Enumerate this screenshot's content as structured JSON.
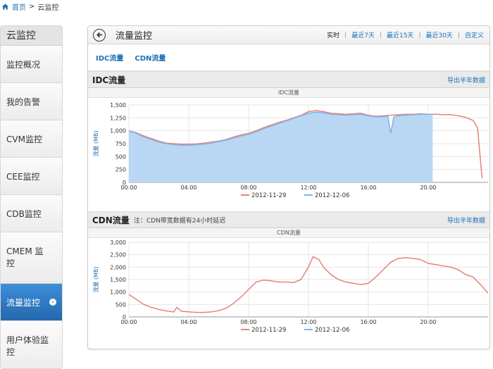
{
  "breadcrumb": {
    "home": "首页",
    "sep": ">",
    "current": "云监控"
  },
  "sidebar": {
    "title": "云监控",
    "items": [
      {
        "label": "监控概况"
      },
      {
        "label": "我的告警"
      },
      {
        "label": "CVM监控"
      },
      {
        "label": "CEE监控"
      },
      {
        "label": "CDB监控"
      },
      {
        "label": "CMEM 监控"
      },
      {
        "label": "流量监控"
      },
      {
        "label": "用户体验监控"
      }
    ]
  },
  "main": {
    "title": "流量监控",
    "ranges": [
      "实时",
      "最近7天",
      "最近15天",
      "最近30天",
      "自定义"
    ],
    "tabs": [
      "IDC流量",
      "CDN流量"
    ],
    "idc": {
      "title": "IDC流量",
      "export": "导出半年数据"
    },
    "cdn": {
      "title": "CDN流量",
      "note": "注：CDN带宽数据有24小时延迟",
      "export": "导出半年数据"
    }
  },
  "colors": {
    "series1": "#e8817a",
    "series2": "#7fb3e6",
    "area": "#b9d7f2",
    "accent": "#1d6fb8",
    "active": "#2a72b8"
  },
  "chart_data": [
    {
      "type": "area",
      "title": "IDC流量",
      "ylabel": "流量 (MB)",
      "xlabel": "",
      "ylim": [
        0,
        1500
      ],
      "yticks": [
        "0",
        "250",
        "500",
        "750",
        "1,000",
        "1,250",
        "1,500"
      ],
      "xticks": [
        "00:00",
        "04:00",
        "08:00",
        "12:00",
        "16:00",
        "20:00"
      ],
      "xlim": [
        0,
        24
      ],
      "legend": "bottom",
      "series": [
        {
          "name": "2012-11-29",
          "x": [
            0,
            0.5,
            1,
            1.5,
            2,
            2.5,
            3,
            3.5,
            4,
            4.5,
            5,
            5.5,
            6,
            6.5,
            7,
            7.5,
            8,
            8.5,
            9,
            9.5,
            10,
            10.5,
            11,
            11.5,
            12,
            12.5,
            13,
            13.5,
            14,
            14.5,
            15,
            15.5,
            16,
            16.5,
            17,
            17.5,
            18,
            18.5,
            19,
            19.5,
            20,
            20.5,
            21,
            21.5,
            22,
            22.5,
            23,
            23.3,
            23.6
          ],
          "values": [
            1000,
            960,
            900,
            850,
            800,
            760,
            750,
            740,
            740,
            745,
            760,
            780,
            800,
            830,
            880,
            920,
            950,
            1000,
            1060,
            1110,
            1160,
            1200,
            1250,
            1300,
            1370,
            1390,
            1370,
            1340,
            1330,
            1320,
            1330,
            1340,
            1300,
            1280,
            1290,
            1300,
            1310,
            1320,
            1320,
            1330,
            1320,
            1320,
            1310,
            1310,
            1290,
            1260,
            1200,
            1050,
            80
          ]
        },
        {
          "name": "2012-12-06",
          "x": [
            0,
            0.5,
            1,
            1.5,
            2,
            2.5,
            3,
            3.5,
            4,
            4.5,
            5,
            5.5,
            6,
            6.5,
            7,
            7.5,
            8,
            8.5,
            9,
            9.5,
            10,
            10.5,
            11,
            11.5,
            12,
            12.5,
            13,
            13.5,
            14,
            14.5,
            15,
            15.5,
            16,
            16.5,
            17,
            17.3,
            17.5,
            17.7,
            18,
            18.5,
            19,
            19.5,
            20,
            20.3
          ],
          "values": [
            1000,
            950,
            880,
            830,
            780,
            750,
            730,
            720,
            720,
            730,
            740,
            760,
            790,
            820,
            860,
            900,
            930,
            980,
            1040,
            1090,
            1140,
            1190,
            1240,
            1290,
            1340,
            1360,
            1350,
            1320,
            1310,
            1300,
            1310,
            1320,
            1290,
            1270,
            1270,
            1280,
            950,
            1270,
            1290,
            1300,
            1310,
            1320,
            1320,
            1320
          ]
        }
      ]
    },
    {
      "type": "line",
      "title": "CDN流量",
      "ylabel": "流量 (MB)",
      "xlabel": "",
      "ylim": [
        0,
        3000
      ],
      "yticks": [
        "0",
        "500",
        "1,000",
        "1,500",
        "2,000",
        "2,500",
        "3,000"
      ],
      "xticks": [
        "00:00",
        "04:00",
        "08:00",
        "12:00",
        "16:00",
        "20:00"
      ],
      "xlim": [
        0,
        24
      ],
      "legend": "bottom",
      "series": [
        {
          "name": "2012-11-29",
          "x": [
            0,
            0.5,
            1,
            1.5,
            2,
            2.5,
            3,
            3.2,
            3.5,
            4,
            4.5,
            5,
            5.5,
            6,
            6.5,
            7,
            7.5,
            8,
            8.5,
            9,
            9.5,
            10,
            10.5,
            11,
            11.5,
            12,
            12.3,
            12.7,
            13,
            13.5,
            14,
            14.5,
            15,
            15.5,
            16,
            16.5,
            17,
            17.5,
            18,
            18.5,
            19,
            19.5,
            20,
            20.5,
            21,
            21.5,
            22,
            22.5,
            23,
            23.5,
            24
          ],
          "values": [
            900,
            700,
            500,
            380,
            300,
            240,
            200,
            380,
            230,
            200,
            180,
            180,
            200,
            250,
            350,
            550,
            800,
            1100,
            1400,
            1480,
            1450,
            1400,
            1400,
            1380,
            1500,
            2000,
            2420,
            2300,
            2000,
            1700,
            1500,
            1400,
            1350,
            1300,
            1350,
            1600,
            1900,
            2200,
            2350,
            2380,
            2350,
            2300,
            2150,
            2100,
            2050,
            2000,
            1900,
            1700,
            1600,
            1300,
            950
          ]
        },
        {
          "name": "2012-12-06",
          "x": [],
          "values": []
        }
      ]
    }
  ]
}
